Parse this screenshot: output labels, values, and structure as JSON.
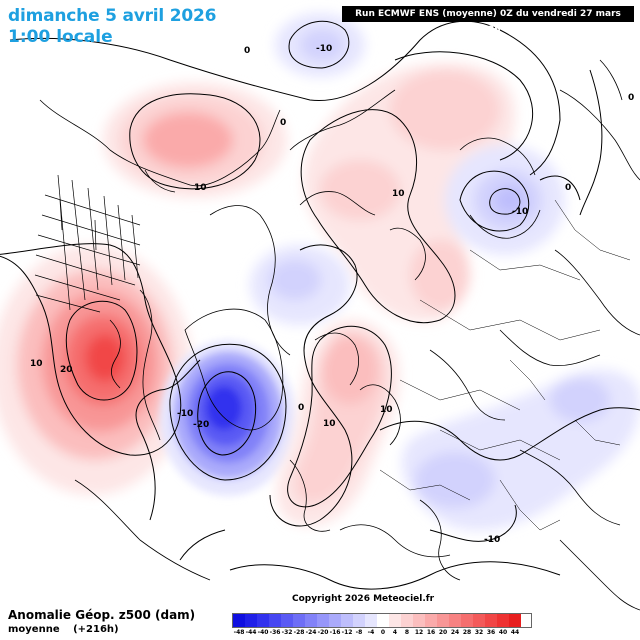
{
  "header": {
    "date_title": "dimanche 5 avril 2026",
    "time_title": "1:00 locale",
    "run_info": "Run ECMWF ENS (moyenne) 0Z du vendredi 27 mars 2026"
  },
  "footer": {
    "product_title": "Anomalie Géop. z500 (dam)",
    "product_sub": "moyenne",
    "lead_time": "(+216h)",
    "copyright": "Copyright 2026 Meteociel.fr"
  },
  "legend": {
    "labels": [
      "-48",
      "-44",
      "-40",
      "-36",
      "-32",
      "-28",
      "-24",
      "-20",
      "-16",
      "-12",
      "-8",
      "-4",
      "0",
      "4",
      "8",
      "12",
      "16",
      "20",
      "24",
      "28",
      "32",
      "36",
      "40",
      "44"
    ],
    "colors": [
      "#1010e0",
      "#2020e8",
      "#3232ee",
      "#4646f2",
      "#5a5af4",
      "#6e6ef6",
      "#8282f8",
      "#9696fa",
      "#aaaafb",
      "#bebefc",
      "#d2d2fd",
      "#e6e6fe",
      "#ffffff",
      "#fde6e6",
      "#fcd2d2",
      "#fbbebe",
      "#faaaaa",
      "#f89696",
      "#f78282",
      "#f56e6e",
      "#f35a5a",
      "#f14646",
      "#ee3232",
      "#e81e1e"
    ]
  },
  "map": {
    "contour_labels": [
      {
        "text": "0",
        "id": "c0-top-left"
      },
      {
        "text": "-10",
        "id": "cm10-top"
      },
      {
        "text": "10",
        "id": "c10-alaska"
      },
      {
        "text": "0",
        "id": "c0-arctic"
      },
      {
        "text": "10",
        "id": "c10-siberia"
      },
      {
        "text": "0",
        "id": "c0-right-edge"
      },
      {
        "text": "0",
        "id": "c0-east-asia"
      },
      {
        "text": "-10",
        "id": "cm10-east-asia"
      },
      {
        "text": "10",
        "id": "c10-na-outer"
      },
      {
        "text": "20",
        "id": "c20-na-inner"
      },
      {
        "text": "-10",
        "id": "cm10-greenland"
      },
      {
        "text": "-20",
        "id": "cm20-greenland"
      },
      {
        "text": "0",
        "id": "c0-greenland-east"
      },
      {
        "text": "10",
        "id": "c10-scandinavia"
      },
      {
        "text": "10",
        "id": "c10-russia"
      },
      {
        "text": "-10",
        "id": "cm10-europe"
      }
    ]
  }
}
